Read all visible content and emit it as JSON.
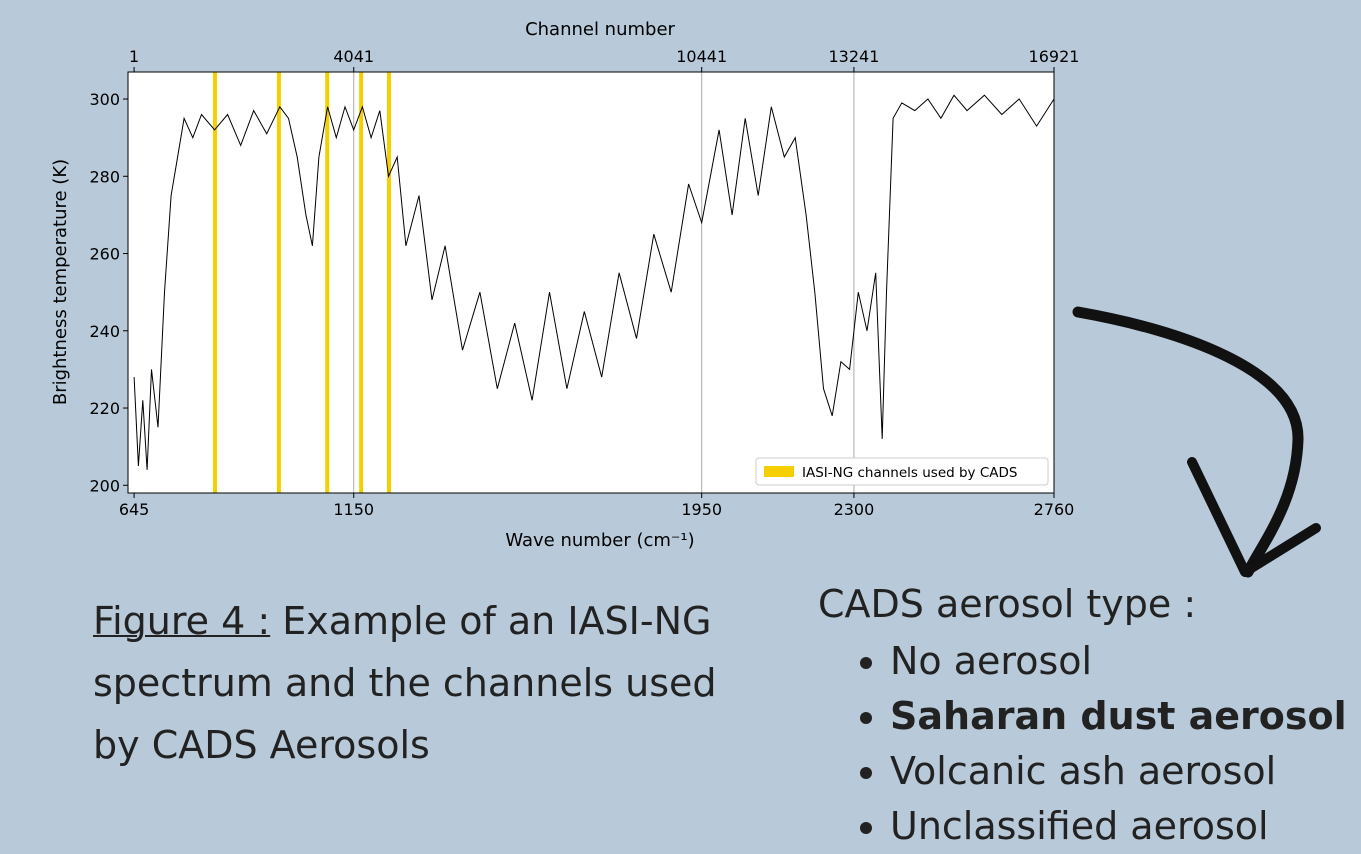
{
  "chart_data": {
    "type": "line",
    "top_axis_label": "Channel number",
    "ylabel": "Brightness temperature (K)",
    "xlabel": "Wave number (cm⁻¹)",
    "x": [
      645,
      655,
      665,
      675,
      685,
      700,
      715,
      730,
      745,
      760,
      780,
      800,
      830,
      860,
      890,
      920,
      950,
      980,
      1000,
      1020,
      1040,
      1055,
      1070,
      1090,
      1110,
      1130,
      1150,
      1170,
      1190,
      1210,
      1230,
      1250,
      1270,
      1300,
      1330,
      1360,
      1400,
      1440,
      1480,
      1520,
      1560,
      1600,
      1640,
      1680,
      1720,
      1760,
      1800,
      1840,
      1880,
      1920,
      1950,
      1990,
      2020,
      2050,
      2080,
      2110,
      2140,
      2165,
      2190,
      2210,
      2230,
      2250,
      2270,
      2290,
      2310,
      2330,
      2350,
      2365,
      2375,
      2390,
      2410,
      2440,
      2470,
      2500,
      2530,
      2560,
      2600,
      2640,
      2680,
      2720,
      2760
    ],
    "series": [
      {
        "color": "#000000",
        "values": [
          228,
          205,
          222,
          204,
          230,
          215,
          250,
          275,
          285,
          295,
          290,
          296,
          292,
          296,
          288,
          297,
          291,
          298,
          295,
          285,
          270,
          262,
          285,
          298,
          290,
          298,
          292,
          298,
          290,
          297,
          280,
          285,
          262,
          275,
          248,
          262,
          235,
          250,
          225,
          242,
          222,
          250,
          225,
          245,
          228,
          255,
          238,
          265,
          250,
          278,
          268,
          292,
          270,
          295,
          275,
          298,
          285,
          290,
          270,
          250,
          225,
          218,
          232,
          230,
          250,
          240,
          255,
          212,
          250,
          295,
          299,
          297,
          300,
          295,
          301,
          297,
          301,
          296,
          300,
          293,
          300
        ]
      }
    ],
    "channels": {
      "name": "IASI-NG channels used by CADS",
      "color": "#f5cf00",
      "values": [
        831,
        978,
        1089,
        1167,
        1231
      ]
    },
    "vlines": [
      1150,
      1950,
      2300
    ],
    "xlim": [
      631,
      2760
    ],
    "xticks": [
      645,
      1150,
      1950,
      2300,
      2760
    ],
    "x2lim": [
      -111,
      16921
    ],
    "x2ticks": [
      1,
      4041,
      10441,
      13241,
      16921
    ],
    "ylim": [
      198,
      307
    ],
    "yticks": [
      200,
      220,
      240,
      260,
      280,
      300
    ],
    "legend": "lower right"
  },
  "caption": {
    "label": "Figure 4 :",
    "text": " Example of an IASI-NG spectrum and the channels used by CADS Aerosols"
  },
  "list": {
    "title": "CADS aerosol type :",
    "items": [
      "No aerosol",
      "Saharan dust aerosol",
      "Volcanic ash aerosol",
      "Unclassified aerosol"
    ],
    "bold_item": 1
  }
}
